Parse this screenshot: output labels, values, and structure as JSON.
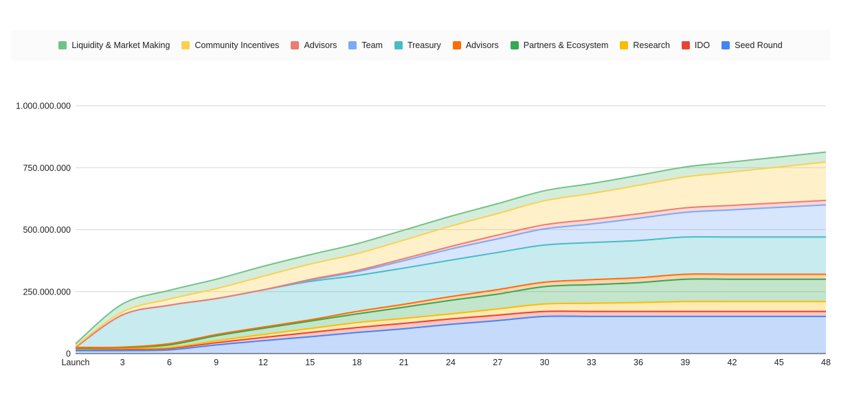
{
  "chart_data": {
    "type": "area",
    "stacked": true,
    "x": [
      "Launch",
      "3",
      "6",
      "9",
      "12",
      "15",
      "18",
      "21",
      "24",
      "27",
      "30",
      "33",
      "36",
      "39",
      "42",
      "45",
      "48"
    ],
    "ylim": [
      0,
      1000000000
    ],
    "yticks": [
      "0",
      "250.000.000",
      "500.000.000",
      "750.000.000",
      "1.000.000.000"
    ],
    "grid": true,
    "legend_position": "top",
    "series": [
      {
        "name": "Seed Round",
        "color": "#4285F4",
        "values": [
          12000000,
          12000000,
          15000000,
          35000000,
          52000000,
          68000000,
          85000000,
          100000000,
          118000000,
          133000000,
          150000000,
          150000000,
          150000000,
          150000000,
          150000000,
          150000000,
          150000000
        ]
      },
      {
        "name": "IDO",
        "color": "#EA4335",
        "values": [
          6000000,
          6000000,
          6000000,
          9000000,
          13000000,
          17000000,
          20000000,
          22000000,
          22000000,
          22000000,
          20000000,
          20000000,
          20000000,
          20000000,
          20000000,
          20000000,
          20000000
        ]
      },
      {
        "name": "Research",
        "color": "#FBBC04",
        "values": [
          2000000,
          4000000,
          4000000,
          8000000,
          12000000,
          16000000,
          20000000,
          20000000,
          20000000,
          25000000,
          30000000,
          33000000,
          36000000,
          40000000,
          40000000,
          40000000,
          40000000
        ]
      },
      {
        "name": "Partners & Ecosystem",
        "color": "#34A853",
        "values": [
          2000000,
          2000000,
          10000000,
          20000000,
          25000000,
          30000000,
          35000000,
          45000000,
          55000000,
          60000000,
          70000000,
          75000000,
          80000000,
          90000000,
          90000000,
          90000000,
          90000000
        ]
      },
      {
        "name": "Advisors",
        "color": "#FF6D01",
        "values": [
          3000000,
          2000000,
          5000000,
          5000000,
          5000000,
          5000000,
          10000000,
          12000000,
          15000000,
          18000000,
          18000000,
          20000000,
          20000000,
          20000000,
          20000000,
          20000000,
          20000000
        ]
      },
      {
        "name": "Treasury",
        "color": "#46BDC6",
        "values": [
          0,
          130000000,
          155000000,
          145000000,
          150000000,
          155000000,
          145000000,
          146000000,
          147000000,
          150000000,
          150000000,
          150000000,
          150000000,
          150000000,
          150000000,
          150000000,
          150000000
        ]
      },
      {
        "name": "Team",
        "color": "#7BAAF7",
        "values": [
          0,
          0,
          0,
          0,
          0,
          5000000,
          15000000,
          30000000,
          45000000,
          55000000,
          65000000,
          75000000,
          90000000,
          100000000,
          110000000,
          120000000,
          130000000
        ]
      },
      {
        "name": "Advisors",
        "color": "#F07B72",
        "values": [
          0,
          0,
          0,
          0,
          0,
          3000000,
          5000000,
          8000000,
          10000000,
          15000000,
          17000000,
          18000000,
          18000000,
          18000000,
          18000000,
          18000000,
          18000000
        ]
      },
      {
        "name": "Community Incentives",
        "color": "#FCD04F",
        "values": [
          5000000,
          12000000,
          25000000,
          40000000,
          55000000,
          62000000,
          68000000,
          75000000,
          82000000,
          87000000,
          97000000,
          105000000,
          115000000,
          125000000,
          135000000,
          145000000,
          155000000
        ]
      },
      {
        "name": "Liquidity & Market Making",
        "color": "#71C287",
        "values": [
          10000000,
          32000000,
          35000000,
          38000000,
          40000000,
          38000000,
          40000000,
          40000000,
          40000000,
          40000000,
          40000000,
          40000000,
          40000000,
          40000000,
          40000000,
          40000000,
          40000000
        ]
      }
    ]
  }
}
